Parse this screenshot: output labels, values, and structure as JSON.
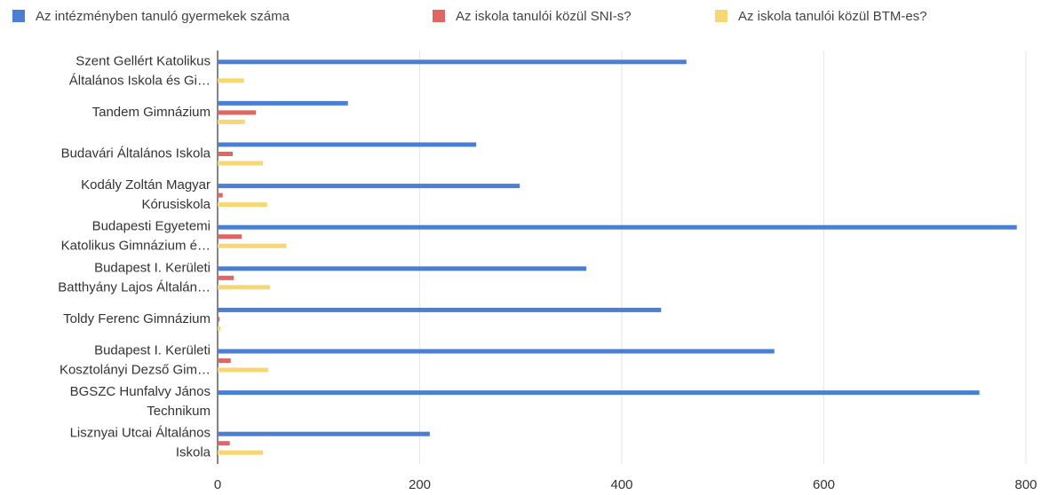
{
  "chart_data": {
    "type": "hbar",
    "categories": [
      [
        "Szent Gellért Katolikus",
        "Általános Iskola és Gi…"
      ],
      [
        "Tandem Gimnázium"
      ],
      [
        "Budavári Általános Iskola"
      ],
      [
        "Kodály Zoltán Magyar",
        "Kórusiskola"
      ],
      [
        "Budapesti Egyetemi",
        "Katolikus Gimnázium é…"
      ],
      [
        "Budapest I. Kerületi",
        "Batthyány Lajos Általán…"
      ],
      [
        "Toldy Ferenc Gimnázium"
      ],
      [
        "Budapest I. Kerületi",
        "Kosztolányi Dezső Gim…"
      ],
      [
        "BGSZC Hunfalvy János",
        "Technikum"
      ],
      [
        "Lisznyai Utcai Általános",
        "Iskola"
      ]
    ],
    "series": [
      {
        "name": "Az intézményben tanuló gyermekek száma",
        "color": "#4a7fd4",
        "values": [
          464,
          129,
          256,
          299,
          791,
          365,
          439,
          551,
          754,
          210
        ]
      },
      {
        "name": "Az iskola tanulói közül SNI-s?",
        "color": "#e06666",
        "values": [
          0,
          38,
          15,
          5,
          24,
          16,
          2,
          13,
          0,
          12
        ]
      },
      {
        "name": "Az iskola tanulói közül BTM-es?",
        "color": "#f7d774",
        "values": [
          26,
          27,
          45,
          49,
          68,
          52,
          3,
          50,
          0,
          45
        ]
      }
    ],
    "xlim": [
      0,
      800
    ],
    "xticks": [
      0,
      200,
      400,
      600,
      800
    ],
    "grid": true,
    "legend": "top"
  }
}
